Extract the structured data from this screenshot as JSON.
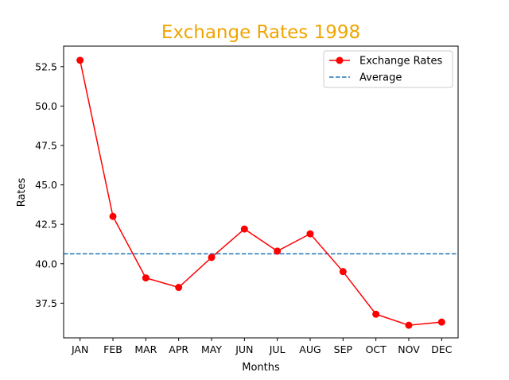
{
  "chart_data": {
    "type": "line",
    "title": "Exchange Rates 1998",
    "title_color": "#f0a500",
    "xlabel": "Months",
    "ylabel": "Rates",
    "categories": [
      "JAN",
      "FEB",
      "MAR",
      "APR",
      "MAY",
      "JUN",
      "JUL",
      "AUG",
      "SEP",
      "OCT",
      "NOV",
      "DEC"
    ],
    "series": [
      {
        "name": "Exchange Rates",
        "color": "#ff0000",
        "marker": "circle",
        "values": [
          52.9,
          43.0,
          39.1,
          38.5,
          40.4,
          42.2,
          40.8,
          41.9,
          39.5,
          36.8,
          36.1,
          36.3
        ]
      }
    ],
    "reference_lines": [
      {
        "name": "Average",
        "value": 40.63,
        "color": "#1f77b4",
        "style": "dashed"
      }
    ],
    "ylim": [
      35.3,
      53.8
    ],
    "yticks": [
      37.5,
      40.0,
      42.5,
      45.0,
      47.5,
      50.0,
      52.5
    ],
    "ytick_labels": [
      "37.5",
      "40.0",
      "42.5",
      "45.0",
      "47.5",
      "50.0",
      "52.5"
    ],
    "grid": false,
    "legend_position": "top-right"
  }
}
